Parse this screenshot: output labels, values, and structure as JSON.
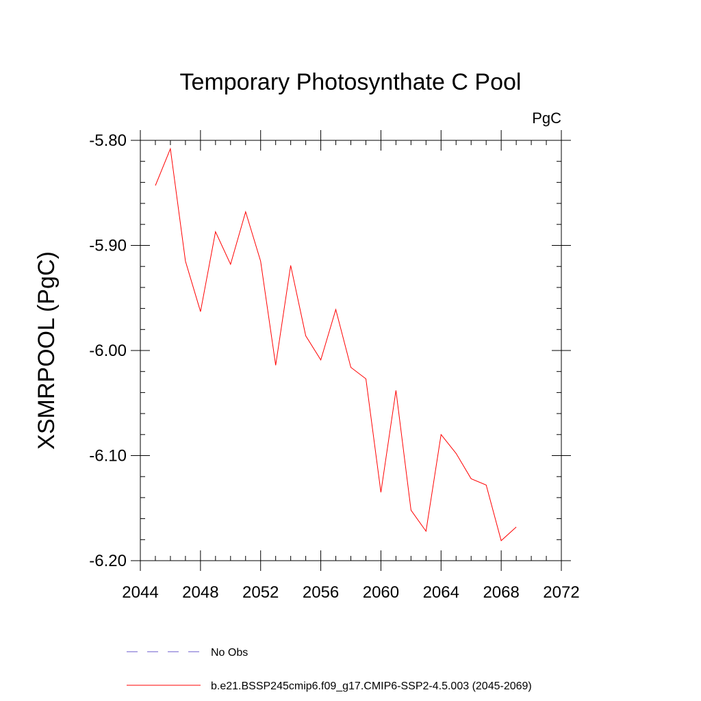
{
  "chart_data": {
    "type": "line",
    "title": "Temporary Photosynthate C Pool",
    "units": "PgC",
    "xlabel": "",
    "ylabel": "XSMRPOOL  (PgC)",
    "xlim": [
      2044,
      2072
    ],
    "ylim": [
      -6.2,
      -5.8
    ],
    "x_ticks": [
      2044,
      2048,
      2052,
      2056,
      2060,
      2064,
      2068,
      2072
    ],
    "x_tick_labels": [
      "2044",
      "2048",
      "2052",
      "2056",
      "2060",
      "2064",
      "2068",
      "2072"
    ],
    "y_ticks": [
      -5.8,
      -5.9,
      -6.0,
      -6.1,
      -6.2
    ],
    "y_tick_labels": [
      "-5.80",
      "-5.90",
      "-6.00",
      "-6.10",
      "-6.20"
    ],
    "x_minor_step": 1,
    "y_minor_step": 0.02,
    "grid": false,
    "series": [
      {
        "name": "b.e21.BSSP245cmip6.f09_g17.CMIP6-SSP2-4.5.003 (2045-2069)",
        "color": "#ff0000",
        "style": "solid",
        "x": [
          2045,
          2046,
          2047,
          2048,
          2049,
          2050,
          2051,
          2052,
          2053,
          2054,
          2055,
          2056,
          2057,
          2058,
          2059,
          2060,
          2061,
          2062,
          2063,
          2064,
          2065,
          2066,
          2067,
          2068,
          2069
        ],
        "values": [
          -5.843,
          -5.808,
          -5.915,
          -5.963,
          -5.887,
          -5.918,
          -5.868,
          -5.915,
          -6.014,
          -5.919,
          -5.986,
          -6.009,
          -5.961,
          -6.016,
          -6.027,
          -6.135,
          -6.038,
          -6.152,
          -6.172,
          -6.08,
          -6.098,
          -6.122,
          -6.128,
          -6.181,
          -6.168
        ]
      }
    ],
    "legend": [
      {
        "label": "No Obs",
        "color": "#6a5acd",
        "style": "dashed"
      },
      {
        "label": "b.e21.BSSP245cmip6.f09_g17.CMIP6-SSP2-4.5.003 (2045-2069)",
        "color": "#ff0000",
        "style": "solid"
      }
    ]
  }
}
